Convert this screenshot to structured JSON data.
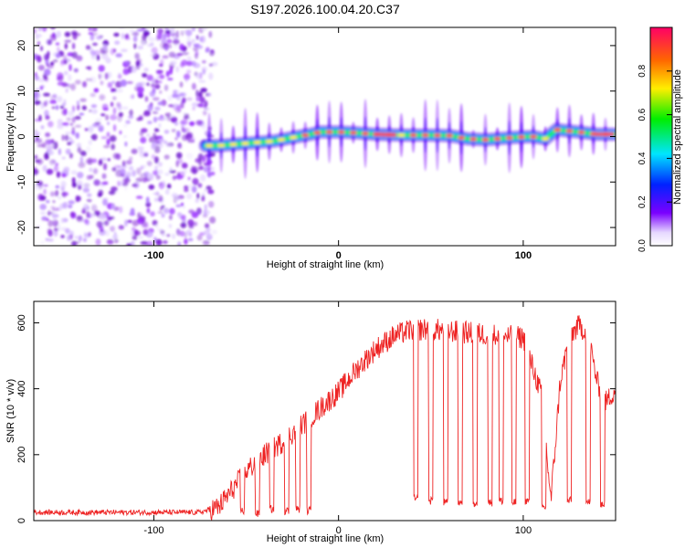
{
  "figure": {
    "title": "S197.2026.100.04.20.C37"
  },
  "chart_data": [
    {
      "type": "heatmap",
      "xlabel": "Height of straight line (km)",
      "ylabel": "Frequency (Hz)",
      "xlim": [
        -165,
        150
      ],
      "ylim": [
        -24,
        24
      ],
      "xticks": [
        -100,
        0,
        100
      ],
      "yticks": [
        -20,
        -10,
        0,
        10,
        20
      ],
      "colorbar": {
        "label": "Normalized spectral amplitude",
        "range": [
          0,
          1
        ],
        "ticks": [
          "0.0",
          "0.2",
          "0.4",
          "0.6",
          "0.8"
        ]
      },
      "noise_region_x": [
        -165,
        -72
      ],
      "ridge": {
        "x": [
          -72,
          -65,
          -50,
          -35,
          -22,
          -15,
          -10,
          0,
          10,
          20,
          35,
          50,
          60,
          70,
          80,
          95,
          105,
          112,
          118,
          130,
          140,
          150
        ],
        "freq": [
          -2.0,
          -2.0,
          -1.5,
          -1.0,
          0.0,
          0.5,
          1.0,
          1.0,
          0.8,
          0.5,
          0.3,
          0.3,
          0.2,
          -0.5,
          -0.7,
          -0.2,
          0.0,
          -0.5,
          1.5,
          1.0,
          0.5,
          0.5
        ]
      }
    },
    {
      "type": "line",
      "xlabel": "Height of straight line (km)",
      "ylabel": "SNR (10 * v/v)",
      "xlim": [
        -165,
        150
      ],
      "ylim": [
        0,
        665
      ],
      "xticks": [
        -100,
        0,
        100
      ],
      "yticks": [
        0,
        200,
        400,
        600
      ],
      "series": [
        {
          "name": "SNR",
          "color": "#ee2222",
          "x": [
            -165,
            -150,
            -130,
            -110,
            -90,
            -75,
            -65,
            -58,
            -50,
            -40,
            -30,
            -20,
            -10,
            0,
            10,
            20,
            30,
            35,
            40,
            50,
            60,
            70,
            80,
            90,
            100,
            110,
            115,
            120,
            125,
            130,
            135,
            140,
            145,
            150
          ],
          "y": [
            25,
            25,
            25,
            25,
            25,
            25,
            40,
            90,
            150,
            200,
            240,
            290,
            340,
            390,
            460,
            520,
            560,
            570,
            580,
            580,
            575,
            570,
            565,
            560,
            555,
            380,
            60,
            420,
            560,
            590,
            570,
            420,
            360,
            400
          ],
          "dropouts": [
            {
              "x": 42,
              "y": 65
            },
            {
              "x": 50,
              "y": 60
            },
            {
              "x": 58,
              "y": 55
            },
            {
              "x": 66,
              "y": 55
            },
            {
              "x": 74,
              "y": 50
            },
            {
              "x": 82,
              "y": 55
            },
            {
              "x": 88,
              "y": 60
            },
            {
              "x": 95,
              "y": 55
            },
            {
              "x": 102,
              "y": 60
            },
            {
              "x": 111,
              "y": 40
            },
            {
              "x": 125,
              "y": 60
            },
            {
              "x": 135,
              "y": 55
            },
            {
              "x": 143,
              "y": 50
            },
            {
              "x": -52,
              "y": 30
            },
            {
              "x": -44,
              "y": 20
            },
            {
              "x": -36,
              "y": 35
            },
            {
              "x": -28,
              "y": 30
            },
            {
              "x": -22,
              "y": 35
            },
            {
              "x": -16,
              "y": 30
            }
          ]
        }
      ]
    }
  ]
}
